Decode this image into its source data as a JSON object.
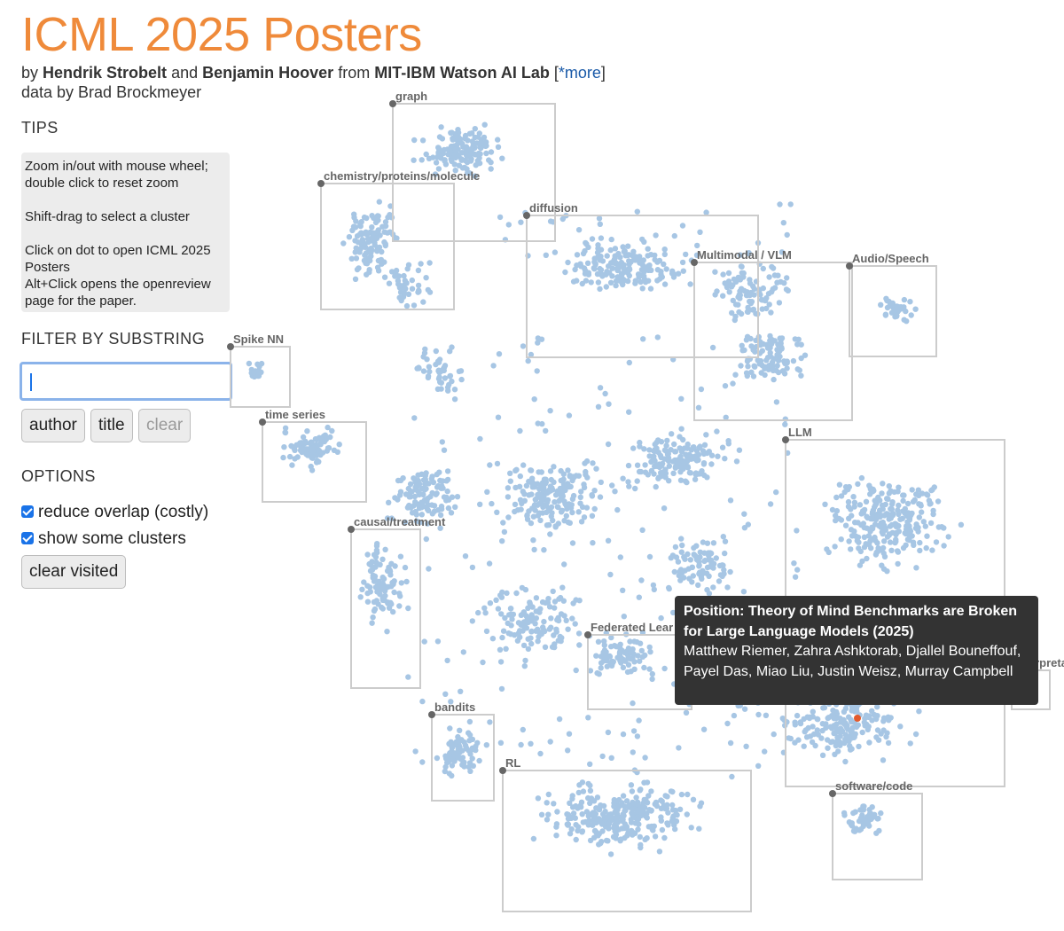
{
  "header": {
    "title": "ICML 2025 Posters",
    "by_prefix": "by",
    "author1": "Hendrik Strobelt",
    "and": "and",
    "author2": "Benjamin Hoover",
    "from": "from",
    "lab": "MIT-IBM Watson AI Lab",
    "more_open": "[",
    "more_link": "*more",
    "more_close": "]",
    "data_credit": "data by Brad Brockmeyer"
  },
  "tips": {
    "heading": "TIPS",
    "lines": [
      "Zoom in/out with mouse wheel; double click to reset zoom",
      "Shift-drag to select a cluster",
      "Click on dot to open ICML 2025 Posters",
      "Alt+Click opens the openreview page for the paper."
    ]
  },
  "filter": {
    "heading": "FILTER BY SUBSTRING",
    "input_value": "",
    "author_button": "author",
    "title_button": "title",
    "clear_button": "clear"
  },
  "options": {
    "heading": "OPTIONS",
    "reduce_overlap": "reduce overlap (costly)",
    "show_clusters": "show some clusters",
    "clear_visited": "clear visited"
  },
  "colors": {
    "dot": "#a7c6e4",
    "highlight": "#e35a2c",
    "box": "#cccccc",
    "title": "#ef8a3a"
  },
  "clusters": [
    {
      "id": "graph",
      "label": "graph"
    },
    {
      "id": "chemistry",
      "label": "chemistry/proteins/molecule"
    },
    {
      "id": "diffusion",
      "label": "diffusion"
    },
    {
      "id": "multimodal",
      "label": "Multimodal / VLM"
    },
    {
      "id": "audio",
      "label": "Audio/Speech"
    },
    {
      "id": "spike",
      "label": "Spike NN"
    },
    {
      "id": "timeseries",
      "label": "time series"
    },
    {
      "id": "llm",
      "label": "LLM"
    },
    {
      "id": "causal",
      "label": "causal/treatment"
    },
    {
      "id": "federated",
      "label": "Federated Lear"
    },
    {
      "id": "interpret",
      "label": "Interpreta"
    },
    {
      "id": "bandits",
      "label": "bandits"
    },
    {
      "id": "rl",
      "label": "RL"
    },
    {
      "id": "software",
      "label": "software/code"
    }
  ],
  "tooltip": {
    "title": "Position: Theory of Mind Benchmarks are Broken for Large Language Models (2025)",
    "authors": "Matthew Riemer, Zahra Ashktorab, Djallel Bouneffouf, Payel Das, Miao Liu, Justin Weisz, Murray Campbell"
  }
}
